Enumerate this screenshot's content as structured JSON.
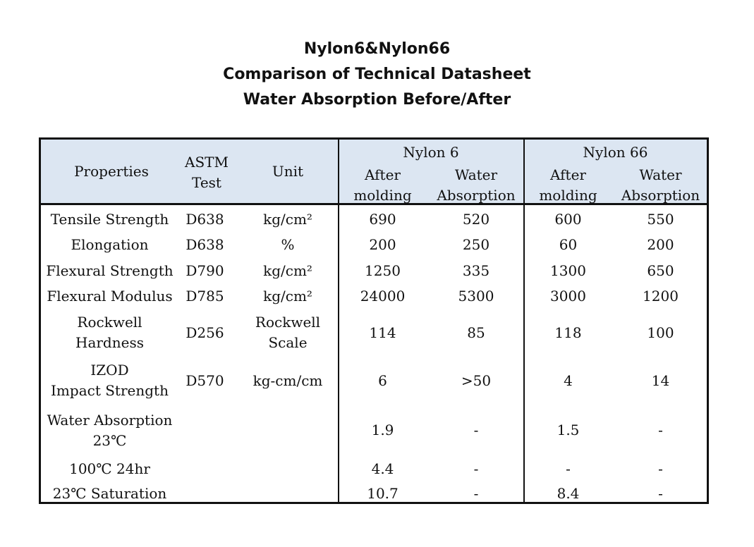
{
  "title": {
    "line1": "Nylon6&Nylon66",
    "line2": "Comparison of Technical Datasheet",
    "line3": "Water Absorption Before/After"
  },
  "table": {
    "header": {
      "properties": "Properties",
      "astm_line1": "ASTM",
      "astm_line2": "Test",
      "unit": "Unit",
      "nylon6": "Nylon 6",
      "nylon66": "Nylon 66",
      "after_line1": "After",
      "after_line2": "molding",
      "water_line1": "Water",
      "water_line2": "Absorption"
    },
    "rows": [
      {
        "property": [
          "Tensile Strength"
        ],
        "astm": "D638",
        "unit": [
          "kg/cm²"
        ],
        "n6_after": "690",
        "n6_water": "520",
        "n66_after": "600",
        "n66_water": "550"
      },
      {
        "property": [
          "Elongation"
        ],
        "astm": "D638",
        "unit": [
          "%"
        ],
        "n6_after": "200",
        "n6_water": "250",
        "n66_after": "60",
        "n66_water": "200"
      },
      {
        "property": [
          "Flexural Strength"
        ],
        "astm": "D790",
        "unit": [
          "kg/cm²"
        ],
        "n6_after": "1250",
        "n6_water": "335",
        "n66_after": "1300",
        "n66_water": "650"
      },
      {
        "property": [
          "Flexural Modulus"
        ],
        "astm": "D785",
        "unit": [
          "kg/cm²"
        ],
        "n6_after": "24000",
        "n6_water": "5300",
        "n66_after": "3000",
        "n66_water": "1200"
      },
      {
        "property": [
          "Rockwell",
          "Hardness"
        ],
        "astm": "D256",
        "unit": [
          "Rockwell",
          "Scale"
        ],
        "n6_after": "114",
        "n6_water": "85",
        "n66_after": "118",
        "n66_water": "100"
      },
      {
        "property": [
          "IZOD",
          "Impact Strength"
        ],
        "astm": "D570",
        "unit": [
          "kg-cm/cm"
        ],
        "n6_after": "6",
        "n6_water": ">50",
        "n66_after": "4",
        "n66_water": "14"
      },
      {
        "property": [
          "Water Absorption",
          "23℃"
        ],
        "astm": "",
        "unit": [
          ""
        ],
        "n6_after": "1.9",
        "n6_water": "-",
        "n66_after": "1.5",
        "n66_water": "-"
      },
      {
        "property": [
          "100℃  24hr"
        ],
        "astm": "",
        "unit": [
          ""
        ],
        "n6_after": "4.4",
        "n6_water": "-",
        "n66_after": "-",
        "n66_water": "-"
      },
      {
        "property": [
          "23℃  Saturation"
        ],
        "astm": "",
        "unit": [
          ""
        ],
        "n6_after": "10.7",
        "n6_water": "-",
        "n66_after": "8.4",
        "n66_water": "-"
      }
    ]
  }
}
